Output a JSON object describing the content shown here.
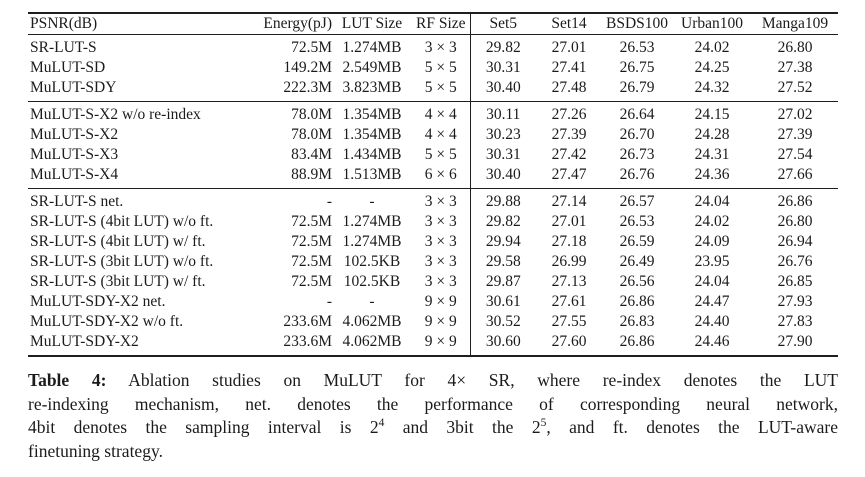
{
  "table": {
    "header": [
      "PSNR(dB)",
      "Energy(pJ)",
      "LUT Size",
      "RF Size",
      "Set5",
      "Set14",
      "BSDS100",
      "Urban100",
      "Manga109"
    ],
    "groups": [
      {
        "rows": [
          [
            "SR-LUT-S",
            "72.5M",
            "1.274MB",
            "3 × 3",
            "29.82",
            "27.01",
            "26.53",
            "24.02",
            "26.80"
          ],
          [
            "MuLUT-SD",
            "149.2M",
            "2.549MB",
            "5 × 5",
            "30.31",
            "27.41",
            "26.75",
            "24.25",
            "27.38"
          ],
          [
            "MuLUT-SDY",
            "222.3M",
            "3.823MB",
            "5 × 5",
            "30.40",
            "27.48",
            "26.79",
            "24.32",
            "27.52"
          ]
        ]
      },
      {
        "rows": [
          [
            "MuLUT-S-X2 w/o re-index",
            "78.0M",
            "1.354MB",
            "4 × 4",
            "30.11",
            "27.26",
            "26.64",
            "24.15",
            "27.02"
          ],
          [
            "MuLUT-S-X2",
            "78.0M",
            "1.354MB",
            "4 × 4",
            "30.23",
            "27.39",
            "26.70",
            "24.28",
            "27.39"
          ],
          [
            "MuLUT-S-X3",
            "83.4M",
            "1.434MB",
            "5 × 5",
            "30.31",
            "27.42",
            "26.73",
            "24.31",
            "27.54"
          ],
          [
            "MuLUT-S-X4",
            "88.9M",
            "1.513MB",
            "6 × 6",
            "30.40",
            "27.47",
            "26.76",
            "24.36",
            "27.66"
          ]
        ]
      },
      {
        "rows": [
          [
            "SR-LUT-S net.",
            "-",
            "-",
            "3 × 3",
            "29.88",
            "27.14",
            "26.57",
            "24.04",
            "26.86"
          ],
          [
            "SR-LUT-S (4bit LUT) w/o ft.",
            "72.5M",
            "1.274MB",
            "3 × 3",
            "29.82",
            "27.01",
            "26.53",
            "24.02",
            "26.80"
          ],
          [
            "SR-LUT-S (4bit LUT) w/ ft.",
            "72.5M",
            "1.274MB",
            "3 × 3",
            "29.94",
            "27.18",
            "26.59",
            "24.09",
            "26.94"
          ],
          [
            "SR-LUT-S (3bit LUT) w/o ft.",
            "72.5M",
            "102.5KB",
            "3 × 3",
            "29.58",
            "26.99",
            "26.49",
            "23.95",
            "26.76"
          ],
          [
            "SR-LUT-S (3bit LUT) w/ ft.",
            "72.5M",
            "102.5KB",
            "3 × 3",
            "29.87",
            "27.13",
            "26.56",
            "24.04",
            "26.85"
          ],
          [
            "MuLUT-SDY-X2 net.",
            "-",
            "-",
            "9 × 9",
            "30.61",
            "27.61",
            "26.86",
            "24.47",
            "27.93"
          ],
          [
            "MuLUT-SDY-X2 w/o ft.",
            "233.6M",
            "4.062MB",
            "9 × 9",
            "30.52",
            "27.55",
            "26.83",
            "24.40",
            "27.83"
          ],
          [
            "MuLUT-SDY-X2",
            "233.6M",
            "4.062MB",
            "9 × 9",
            "30.60",
            "27.60",
            "26.86",
            "24.46",
            "27.90"
          ]
        ]
      }
    ]
  },
  "caption": {
    "lines": [
      {
        "segments": [
          {
            "bold": "Table 4:"
          },
          {
            "text": " Ablation studies on MuLUT for 4× SR, where re-index denotes the LUT"
          }
        ],
        "last": false
      },
      {
        "segments": [
          {
            "text": "re-indexing mechanism, net. denotes the performance of corresponding neural network,"
          }
        ],
        "last": false
      },
      {
        "segments": [
          {
            "text": "4bit denotes the sampling interval is 2"
          },
          {
            "sup": "4"
          },
          {
            "text": " and 3bit the 2"
          },
          {
            "sup": "5"
          },
          {
            "text": ", and ft. denotes the LUT-aware"
          }
        ],
        "last": false
      },
      {
        "segments": [
          {
            "text": "finetuning strategy."
          }
        ],
        "last": true
      }
    ]
  }
}
